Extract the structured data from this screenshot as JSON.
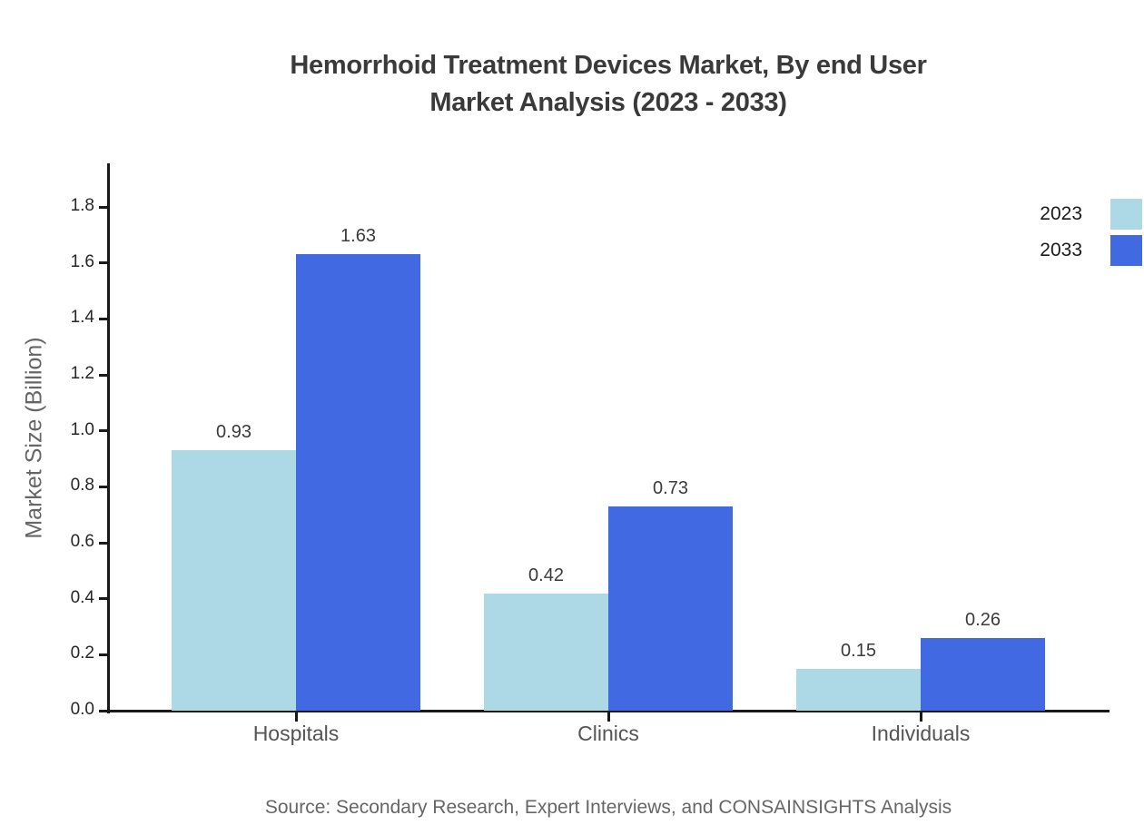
{
  "page": {
    "title_line1": "Hemorrhoid Treatment Devices Market, By end User",
    "title_line2": "Market Analysis (2023 - 2033)",
    "source": "Source: Secondary Research, Expert Interviews, and CONSAINSIGHTS Analysis"
  },
  "chart_data": {
    "type": "bar",
    "title": "Hemorrhoid Treatment Devices Market, By end User Market Analysis (2023 - 2033)",
    "categories": [
      "Hospitals",
      "Clinics",
      "Individuals"
    ],
    "series": [
      {
        "name": "2023",
        "color": "#ADD8E6",
        "values": [
          0.93,
          0.42,
          0.15
        ]
      },
      {
        "name": "2033",
        "color": "#4169E1",
        "values": [
          1.63,
          0.73,
          0.26
        ]
      }
    ],
    "xlabel": "",
    "ylabel": "Market Size (Billion)",
    "ylim": [
      0,
      1.9
    ],
    "yticks": [
      0.0,
      0.2,
      0.4,
      0.6,
      0.8,
      1.0,
      1.2,
      1.4,
      1.6,
      1.8
    ],
    "grid": false,
    "legend_position": "upper-right",
    "value_labels": true,
    "source": "Source: Secondary Research, Expert Interviews, and CONSAINSIGHTS Analysis"
  }
}
